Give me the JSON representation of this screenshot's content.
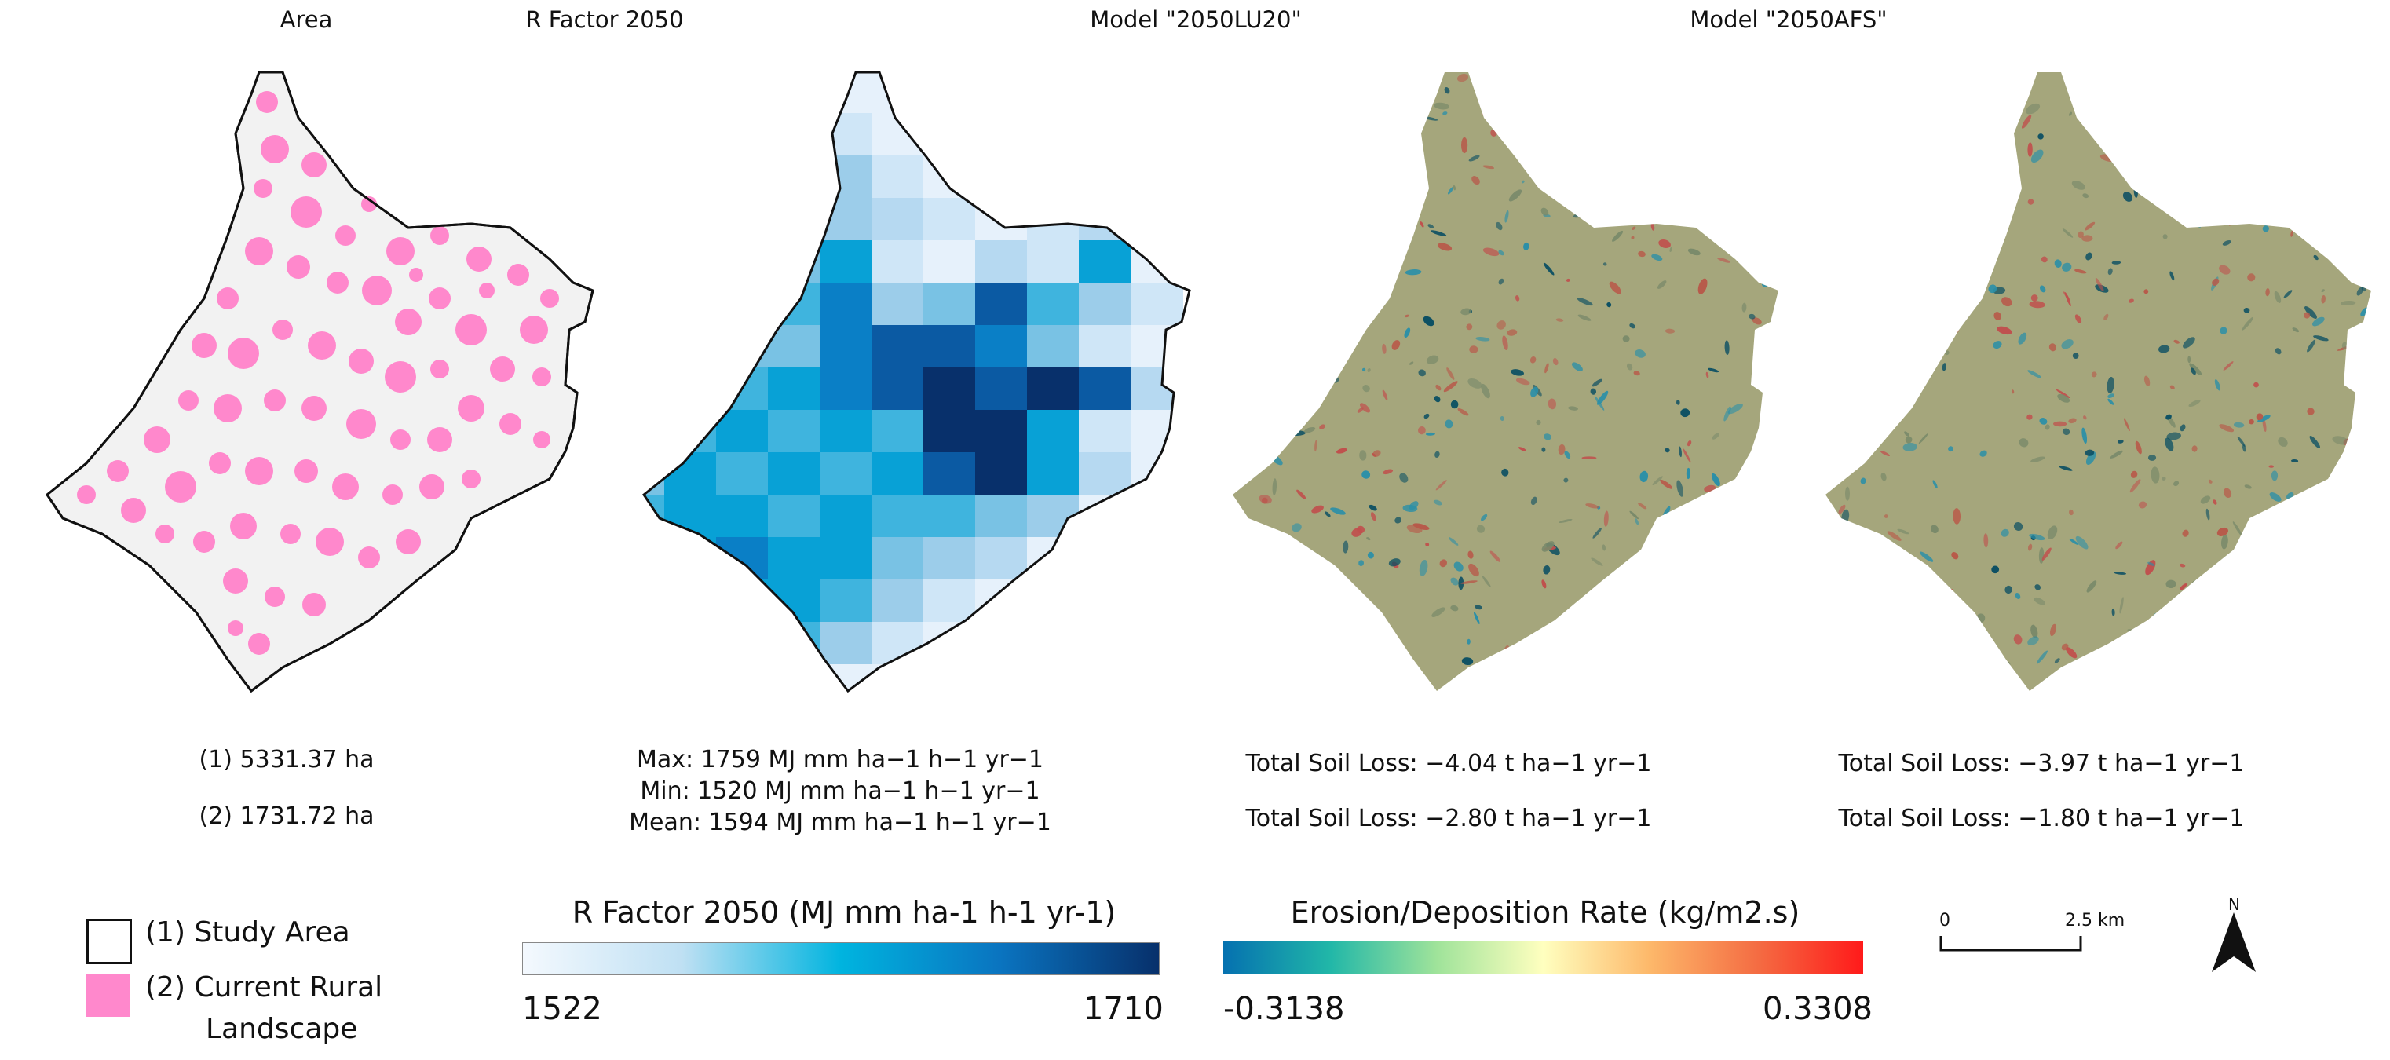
{
  "panels": [
    {
      "title": "Area"
    },
    {
      "title": "R Factor 2050"
    },
    {
      "title": "Model \"2050LU20\""
    },
    {
      "title": "Model \"2050AFS\""
    }
  ],
  "area_stats": {
    "line1": "(1) 5331.37 ha",
    "line2": "(2) 1731.72 ha"
  },
  "rfactor_stats": {
    "max": "Max: 1759 MJ mm ha−1 h−1 yr−1",
    "min": "Min: 1520 MJ mm ha−1 h−1 yr−1",
    "mean": "Mean: 1594 MJ mm ha−1 h−1 yr−1"
  },
  "lu20_stats": {
    "line1": "Total Soil Loss: −4.04 t ha−1 yr−1",
    "line2": "Total Soil Loss: −2.80  t ha−1 yr−1"
  },
  "afs_stats": {
    "line1": "Total Soil Loss: −3.97  t ha−1 yr−1",
    "line2": "Total Soil Loss: −1.80  t ha−1 yr−1"
  },
  "legend": {
    "item1": "(1) Study Area",
    "item2_line1": "(2) Current Rural",
    "item2_line2": "Landscape",
    "study_area_color": "#ffffff",
    "rural_color": "#ff88cc"
  },
  "rfactor_bar": {
    "title": "R Factor 2050 (MJ mm ha-1 h-1 yr-1)",
    "min_label": "1522",
    "max_label": "1710",
    "colors": [
      "#f4f9fe",
      "#bfe0f3",
      "#00b4df",
      "#0a74c0",
      "#07306b"
    ]
  },
  "erosion_bar": {
    "title": "Erosion/Deposition Rate (kg/m2.s)",
    "min_label": "-0.3138",
    "max_label": "0.3308",
    "colors": [
      "#0571b0",
      "#21b7a8",
      "#9fe39a",
      "#ffffbf",
      "#fdb86a",
      "#f46d43",
      "#ff1a1a"
    ]
  },
  "scalebar": {
    "start": "0",
    "end": "2.5 km"
  },
  "north": {
    "label": "N"
  },
  "colors": {
    "boundary": "#111111",
    "area_fill": "#f2f2f2",
    "model_fill": "#a5a67c",
    "erosion_dark": "#0b4f63",
    "deposition_red": "#c0504d"
  }
}
